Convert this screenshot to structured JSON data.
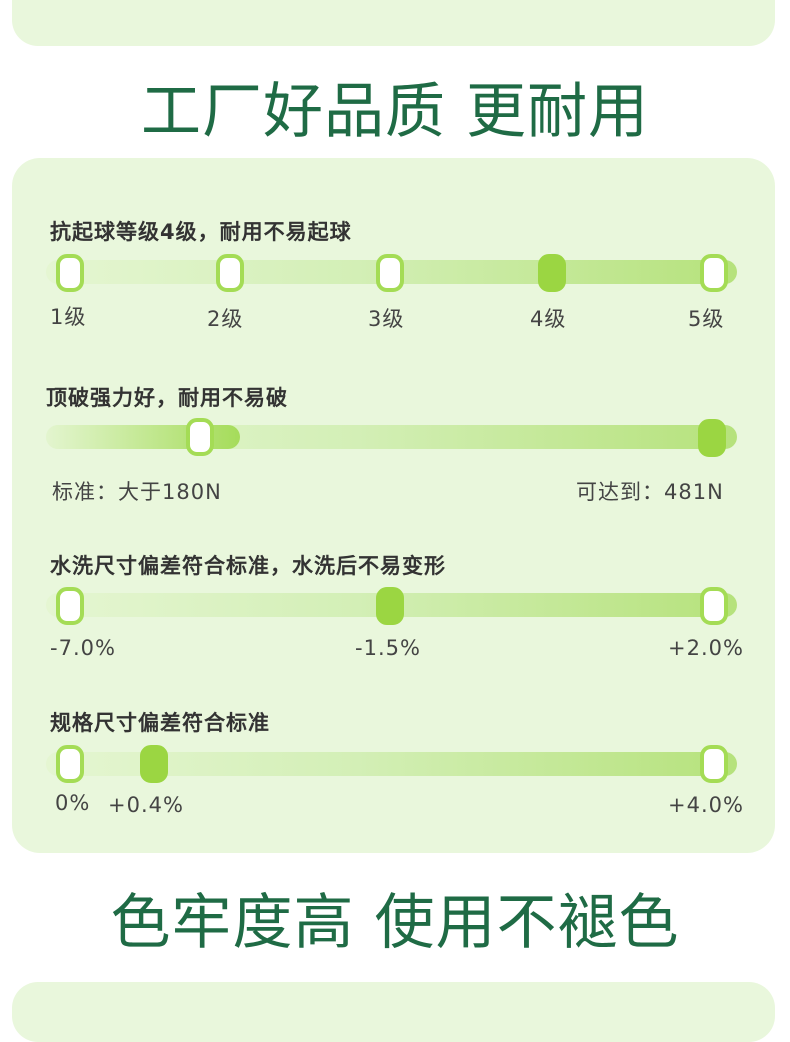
{
  "headings": {
    "quality": "工厂好品质 更耐用",
    "colorfast": "色牢度高 使用不褪色"
  },
  "metrics": {
    "pilling": {
      "title": "抗起球等级4级，耐用不易起球",
      "scale": [
        "1级",
        "2级",
        "3级",
        "4级",
        "5级"
      ],
      "value": "4级"
    },
    "bursting": {
      "title": "顶破强力好，耐用不易破",
      "standard": "标准：大于180N",
      "achieved": "可达到：481N",
      "standard_value": 180,
      "achieved_value": 481
    },
    "wash_shrink": {
      "title": "水洗尺寸偏差符合标准，水洗后不易变形",
      "ticks": [
        "-7.0%",
        "-1.5%",
        "+2.0%"
      ],
      "value": -1.5
    },
    "size_deviation": {
      "title": "规格尺寸偏差符合标准",
      "ticks": [
        "0%",
        "+0.4%",
        "+4.0%"
      ],
      "value": 0.4
    }
  }
}
